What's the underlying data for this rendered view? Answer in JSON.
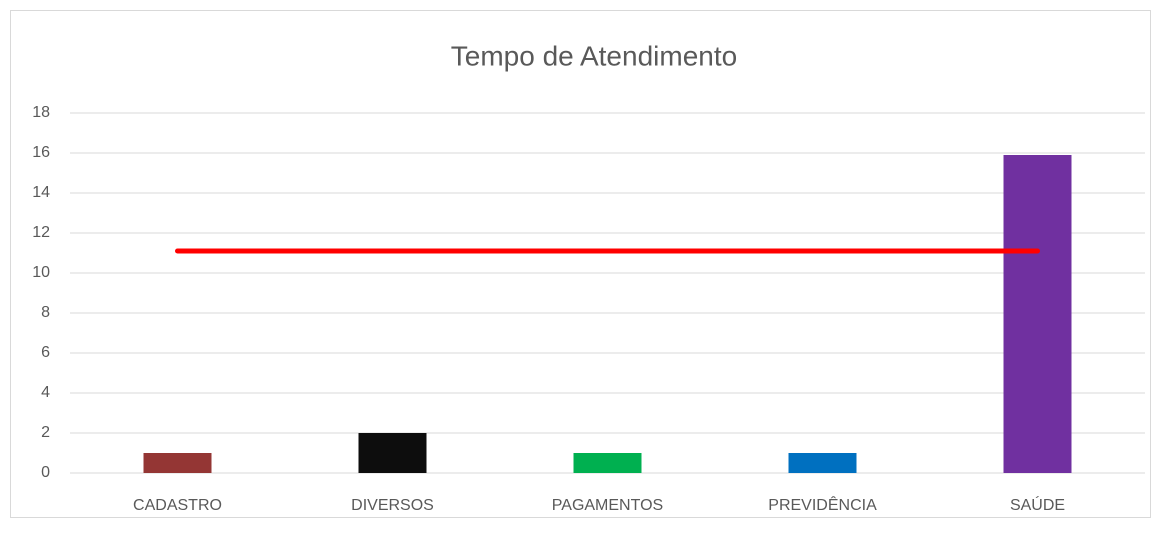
{
  "chart_data": {
    "type": "bar",
    "title": "Tempo de Atendimento",
    "categories": [
      "CADASTRO",
      "DIVERSOS",
      "PAGAMENTOS",
      "PREVIDÊNCIA",
      "SAÚDE"
    ],
    "series": [
      {
        "type": "bar",
        "colors": [
          "#943634",
          "#0d0d0d",
          "#00b050",
          "#0070c0",
          "#7030a0"
        ],
        "values": [
          1,
          2,
          1,
          1,
          15.9
        ]
      },
      {
        "type": "line",
        "color": "#ff0000",
        "values": [
          11.1,
          11.1,
          11.1,
          11.1,
          11.1
        ]
      }
    ],
    "ylim": [
      0,
      18
    ],
    "yticks": [
      0,
      2,
      4,
      6,
      8,
      10,
      12,
      14,
      16,
      18
    ],
    "grid": true
  }
}
